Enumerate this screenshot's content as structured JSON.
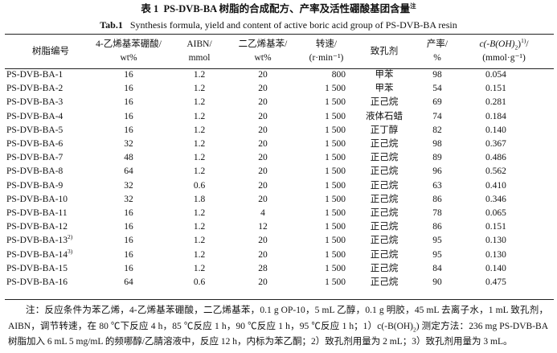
{
  "title": {
    "label": "表 1",
    "text": "PS-DVB-BA 树脂的合成配方、产率及活性硼酸基团含量",
    "note": "注"
  },
  "subtitle": {
    "label": "Tab.1",
    "text": "Synthesis formula, yield and content of active boric acid group of PS-DVB-BA resin"
  },
  "table": {
    "headers": [
      [
        "树脂编号"
      ],
      [
        "4-乙烯基苯硼酸/",
        "wt%"
      ],
      [
        "AIBN/",
        "mmol"
      ],
      [
        "二乙烯基苯/",
        "wt%"
      ],
      [
        "转速/",
        "(r·min⁻¹)"
      ],
      [
        "致孔剂"
      ],
      [
        "产率/",
        "%"
      ],
      [
        {
          "text": "c(-B(OH)",
          "sub": "2",
          "text2": ")",
          "sup": "1)",
          "end": "/"
        },
        "(mmol·g⁻¹)"
      ]
    ],
    "rows": [
      {
        "cells": [
          "PS-DVB-BA-1",
          "16",
          "1.2",
          "20",
          "800",
          "甲苯",
          "98",
          "0.054"
        ]
      },
      {
        "cells": [
          "PS-DVB-BA-2",
          "16",
          "1.2",
          "20",
          "1 500",
          "甲苯",
          "54",
          "0.151"
        ]
      },
      {
        "cells": [
          "PS-DVB-BA-3",
          "16",
          "1.2",
          "20",
          "1 500",
          "正己烷",
          "69",
          "0.281"
        ]
      },
      {
        "cells": [
          "PS-DVB-BA-4",
          "16",
          "1.2",
          "20",
          "1 500",
          "液体石蜡",
          "74",
          "0.184"
        ]
      },
      {
        "cells": [
          "PS-DVB-BA-5",
          "16",
          "1.2",
          "20",
          "1 500",
          "正丁醇",
          "82",
          "0.140"
        ]
      },
      {
        "cells": [
          "PS-DVB-BA-6",
          "32",
          "1.2",
          "20",
          "1 500",
          "正己烷",
          "98",
          "0.367"
        ]
      },
      {
        "cells": [
          "PS-DVB-BA-7",
          "48",
          "1.2",
          "20",
          "1 500",
          "正己烷",
          "89",
          "0.486"
        ]
      },
      {
        "cells": [
          "PS-DVB-BA-8",
          "64",
          "1.2",
          "20",
          "1 500",
          "正己烷",
          "96",
          "0.562"
        ]
      },
      {
        "cells": [
          "PS-DVB-BA-9",
          "32",
          "0.6",
          "20",
          "1 500",
          "正己烷",
          "63",
          "0.410"
        ]
      },
      {
        "cells": [
          "PS-DVB-BA-10",
          "32",
          "1.8",
          "20",
          "1 500",
          "正己烷",
          "86",
          "0.346"
        ]
      },
      {
        "cells": [
          "PS-DVB-BA-11",
          "16",
          "1.2",
          "4",
          "1 500",
          "正己烷",
          "78",
          "0.065"
        ]
      },
      {
        "cells": [
          "PS-DVB-BA-12",
          "16",
          "1.2",
          "12",
          "1 500",
          "正己烷",
          "86",
          "0.151"
        ]
      },
      {
        "cells": [
          "PS-DVB-BA-13",
          "16",
          "1.2",
          "20",
          "1 500",
          "正己烷",
          "95",
          "0.130"
        ],
        "note": "2)"
      },
      {
        "cells": [
          "PS-DVB-BA-14",
          "16",
          "1.2",
          "20",
          "1 500",
          "正己烷",
          "95",
          "0.130"
        ],
        "note": "3)"
      },
      {
        "cells": [
          "PS-DVB-BA-15",
          "16",
          "1.2",
          "28",
          "1 500",
          "正己烷",
          "84",
          "0.140"
        ]
      },
      {
        "cells": [
          "PS-DVB-BA-16",
          "64",
          "0.6",
          "20",
          "1 500",
          "正己烷",
          "90",
          "0.475"
        ]
      }
    ]
  },
  "footnote": {
    "lead": "注：反应条件为苯乙烯，4-乙烯基苯硼酸，二乙烯基苯，0.1 g OP-10，5 mL 乙醇，0.1 g 明胶，45 mL 去离子水，1 mL 致孔剂，AIBN，调节转速，在 80 ℃下反应 4 h，85 ℃反应 1 h，90 ℃反应 1 h，95 ℃反应 1 h；1）c(-B(OH)",
    "sub": "2",
    "rest": ") 测定方法：236 mg PS-DVB-BA 树脂加入 6 mL 5 mg/mL 的频哪醇/乙腈溶液中，反应 12 h，内标为苯乙酮；2）致孔剂用量为 2 mL；3）致孔剂用量为 3 mL。"
  }
}
